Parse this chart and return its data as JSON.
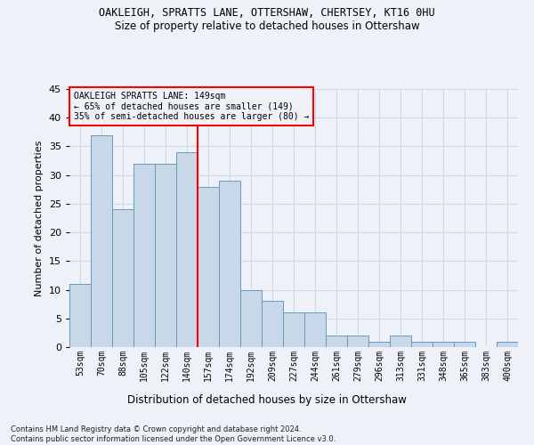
{
  "title": "OAKLEIGH, SPRATTS LANE, OTTERSHAW, CHERTSEY, KT16 0HU",
  "subtitle": "Size of property relative to detached houses in Ottershaw",
  "xlabel": "Distribution of detached houses by size in Ottershaw",
  "ylabel": "Number of detached properties",
  "bar_labels": [
    "53sqm",
    "70sqm",
    "88sqm",
    "105sqm",
    "122sqm",
    "140sqm",
    "157sqm",
    "174sqm",
    "192sqm",
    "209sqm",
    "227sqm",
    "244sqm",
    "261sqm",
    "279sqm",
    "296sqm",
    "313sqm",
    "331sqm",
    "348sqm",
    "365sqm",
    "383sqm",
    "400sqm"
  ],
  "bar_values": [
    11,
    37,
    24,
    32,
    32,
    34,
    28,
    29,
    10,
    8,
    6,
    6,
    2,
    2,
    1,
    2,
    1,
    1,
    1,
    0,
    1
  ],
  "bar_color": "#c8d8e8",
  "bar_edge_color": "#6699bb",
  "vline_color": "red",
  "vline_index": 6,
  "ylim": [
    0,
    45
  ],
  "yticks": [
    0,
    5,
    10,
    15,
    20,
    25,
    30,
    35,
    40,
    45
  ],
  "annotation_title": "OAKLEIGH SPRATTS LANE: 149sqm",
  "annotation_line1": "← 65% of detached houses are smaller (149)",
  "annotation_line2": "35% of semi-detached houses are larger (80) →",
  "annotation_box_color": "red",
  "footer_line1": "Contains HM Land Registry data © Crown copyright and database right 2024.",
  "footer_line2": "Contains public sector information licensed under the Open Government Licence v3.0.",
  "background_color": "#eef2f8",
  "grid_color": "#d0d8e8"
}
